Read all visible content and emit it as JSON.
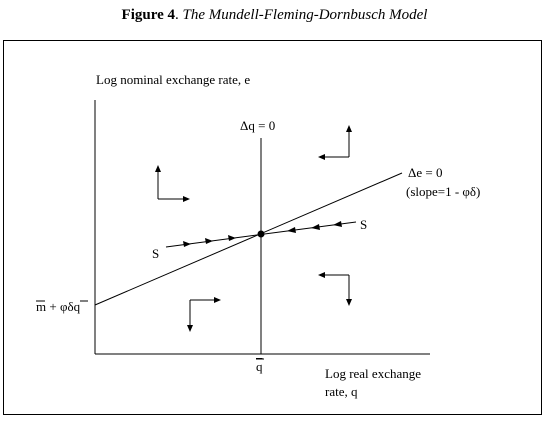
{
  "caption": {
    "figure_label": "Figure 4",
    "separator": ". ",
    "title": "The Mundell-Fleming-Dornbusch Model"
  },
  "axes": {
    "y_label": "Log nominal exchange rate, e",
    "x_label_line1": "Log real exchange",
    "x_label_line2": "rate, q"
  },
  "labels": {
    "dq_zero": "Δq = 0",
    "de_zero": "Δe = 0",
    "slope": "(slope=1 - φδ)",
    "saddle_left": "S",
    "saddle_right": "S",
    "q_bar": "q",
    "intercept_m": "m",
    "intercept_mid": " + φδ",
    "intercept_q": "q"
  },
  "colors": {
    "ink": "#000000",
    "background": "#ffffff"
  },
  "icons": [
    "arrow-up-right-icon",
    "arrow-up-left-icon",
    "arrow-down-right-icon",
    "arrow-down-left-icon"
  ]
}
